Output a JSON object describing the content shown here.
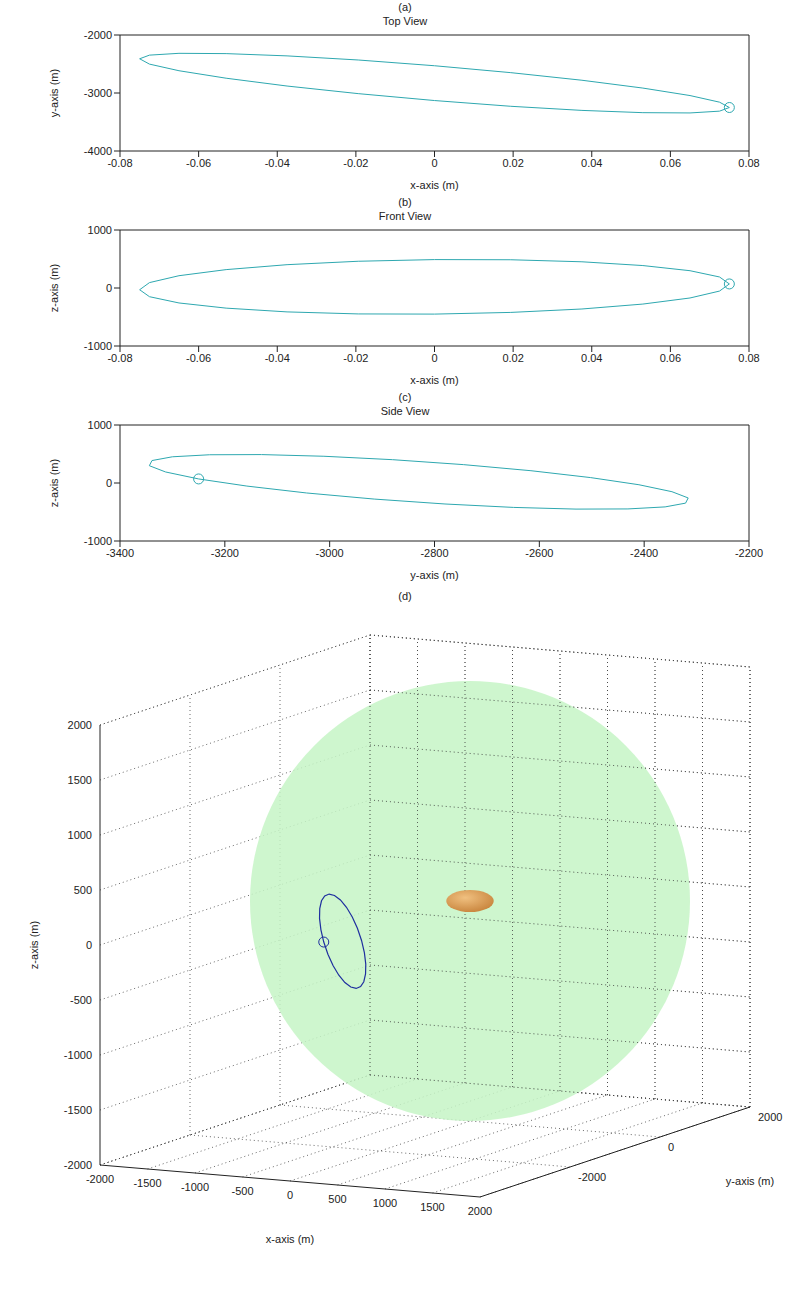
{
  "chart_data": [
    {
      "type": "line",
      "title": "(a)",
      "subtitle": "Top View",
      "x_label": "x-axis (m)",
      "y_label": "y-axis (m)",
      "color": "#2ea8b0",
      "marker": "o",
      "xlim": [
        -0.08,
        0.08
      ],
      "xticks": [
        -0.08,
        -0.06,
        -0.04,
        -0.02,
        0,
        0.02,
        0.04,
        0.06,
        0.08
      ],
      "ylim": [
        -4000,
        -2000
      ],
      "yticks": [
        -4000,
        -3000,
        -2000
      ],
      "x": [
        0.075,
        0.0725,
        0.065,
        0.053,
        0.0375,
        0.0194,
        0,
        -0.0194,
        -0.0375,
        -0.053,
        -0.065,
        -0.0725,
        -0.075,
        -0.0725,
        -0.065,
        -0.053,
        -0.0375,
        -0.0194,
        0,
        0.0194,
        0.0375,
        0.053,
        0.065,
        0.0725,
        0.075
      ],
      "values": [
        -3250,
        -3158,
        -3044,
        -2915,
        -2780,
        -2649,
        -2530,
        -2431,
        -2360,
        -2321,
        -2316,
        -2347,
        -2410,
        -2502,
        -2616,
        -2745,
        -2880,
        -3011,
        -3130,
        -3229,
        -3300,
        -3339,
        -3344,
        -3313,
        -3250
      ]
    },
    {
      "type": "line",
      "title": "(b)",
      "subtitle": "Front View",
      "x_label": "x-axis (m)",
      "y_label": "z-axis (m)",
      "color": "#2ea8b0",
      "marker": "o",
      "xlim": [
        -0.08,
        0.08
      ],
      "xticks": [
        -0.08,
        -0.06,
        -0.04,
        -0.02,
        0,
        0.02,
        0.04,
        0.06,
        0.08
      ],
      "ylim": [
        -1000,
        1000
      ],
      "yticks": [
        -1000,
        0,
        1000
      ],
      "x": [
        0.075,
        0.0725,
        0.065,
        0.053,
        0.0375,
        0.0194,
        0,
        -0.0194,
        -0.0375,
        -0.053,
        -0.065,
        -0.0725,
        -0.075,
        -0.0725,
        -0.065,
        -0.053,
        -0.0375,
        -0.0194,
        0,
        0.0194,
        0.0375,
        0.053,
        0.065,
        0.0725,
        0.075
      ],
      "values": [
        70,
        -53,
        -172,
        -277,
        -362,
        -421,
        -450,
        -447,
        -412,
        -347,
        -258,
        -150,
        -30,
        93,
        212,
        317,
        402,
        461,
        490,
        487,
        452,
        387,
        298,
        190,
        70
      ]
    },
    {
      "type": "line",
      "title": "(c)",
      "subtitle": "Side View",
      "x_label": "y-axis (m)",
      "y_label": "z-axis (m)",
      "color": "#2ea8b0",
      "marker": "o",
      "xlim": [
        -3400,
        -2200
      ],
      "xticks": [
        -3400,
        -3200,
        -3000,
        -2800,
        -2600,
        -2400,
        -2200
      ],
      "ylim": [
        -1000,
        1000
      ],
      "yticks": [
        -1000,
        0,
        1000
      ],
      "x": [
        -3250,
        -3158,
        -3044,
        -2915,
        -2780,
        -2649,
        -2530,
        -2431,
        -2360,
        -2321,
        -2316,
        -2347,
        -2410,
        -2502,
        -2616,
        -2745,
        -2880,
        -3011,
        -3130,
        -3229,
        -3300,
        -3339,
        -3344,
        -3313,
        -3250
      ],
      "values": [
        70,
        -53,
        -172,
        -277,
        -362,
        -421,
        -450,
        -447,
        -412,
        -347,
        -258,
        -150,
        -30,
        93,
        212,
        317,
        402,
        461,
        490,
        487,
        452,
        387,
        298,
        190,
        70
      ]
    },
    {
      "type": "3d",
      "title": "(d)",
      "x_label": "x-axis (m)",
      "y_label": "y-axis (m)",
      "z_label": "z-axis (m)",
      "color": "#1f2f9f",
      "marker": "o",
      "grid": true,
      "xlim": [
        -2000,
        2000
      ],
      "xticks": [
        -2000,
        -1500,
        -1000,
        -500,
        0,
        500,
        1000,
        1500,
        2000
      ],
      "ylim": [
        -4000,
        2000
      ],
      "yticks": [
        -2000,
        0,
        2000
      ],
      "zlim": [
        -2000,
        2000
      ],
      "zticks": [
        -2000,
        -1500,
        -1000,
        -500,
        0,
        500,
        1000,
        1500,
        2000
      ],
      "x": [
        0.075,
        0.0725,
        0.065,
        0.053,
        0.0375,
        0.0194,
        0,
        -0.0194,
        -0.0375,
        -0.053,
        -0.065,
        -0.0725,
        -0.075,
        -0.0725,
        -0.065,
        -0.053,
        -0.0375,
        -0.0194,
        0,
        0.0194,
        0.0375,
        0.053,
        0.065,
        0.0725,
        0.075
      ],
      "y": [
        -3250,
        -3158,
        -3044,
        -2915,
        -2780,
        -2649,
        -2530,
        -2431,
        -2360,
        -2321,
        -2316,
        -2347,
        -2410,
        -2502,
        -2616,
        -2745,
        -2880,
        -3011,
        -3130,
        -3229,
        -3300,
        -3339,
        -3344,
        -3313,
        -3250
      ],
      "z": [
        70,
        -53,
        -172,
        -277,
        -362,
        -421,
        -450,
        -447,
        -412,
        -347,
        -258,
        -150,
        -30,
        93,
        212,
        317,
        402,
        461,
        490,
        487,
        452,
        387,
        298,
        190,
        70
      ],
      "sphere": {
        "center": [
          0,
          0,
          0
        ],
        "radius": 2000,
        "color": "#c6f5c6"
      },
      "body": {
        "center": [
          0,
          0,
          0
        ],
        "semi_axes": [
          250,
          100
        ],
        "color": "#c8843c"
      }
    }
  ]
}
